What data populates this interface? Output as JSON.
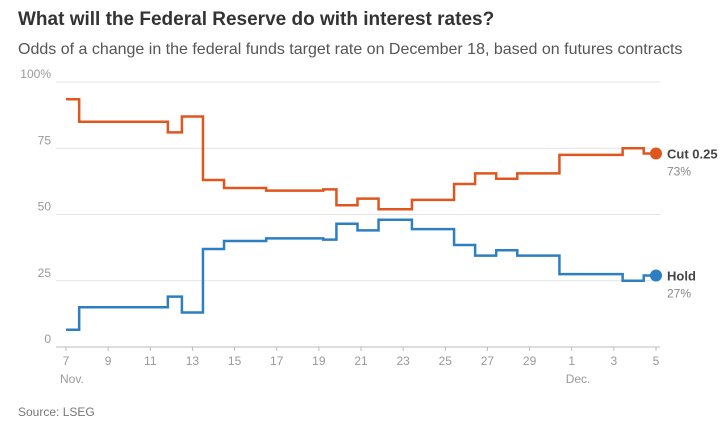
{
  "title": "What will the Federal Reserve do with interest rates?",
  "subtitle": "Odds of a change in the federal funds target rate on December 18, based on futures contracts",
  "source": "Source: LSEG",
  "chart_data": {
    "type": "line",
    "step": true,
    "xlim": [
      "2024-11-07",
      "2024-12-05"
    ],
    "ylim": [
      0,
      100
    ],
    "y_ticks": [
      {
        "value": 0,
        "label": "0"
      },
      {
        "value": 25,
        "label": "25"
      },
      {
        "value": 50,
        "label": "50"
      },
      {
        "value": 75,
        "label": "75"
      },
      {
        "value": 100,
        "label": "100%"
      }
    ],
    "x_ticks": [
      {
        "date": "2024-11-07",
        "label": "7",
        "sublabel": "Nov."
      },
      {
        "date": "2024-11-09",
        "label": "9"
      },
      {
        "date": "2024-11-11",
        "label": "11"
      },
      {
        "date": "2024-11-13",
        "label": "13"
      },
      {
        "date": "2024-11-15",
        "label": "15"
      },
      {
        "date": "2024-11-17",
        "label": "17"
      },
      {
        "date": "2024-11-19",
        "label": "19"
      },
      {
        "date": "2024-11-21",
        "label": "21"
      },
      {
        "date": "2024-11-23",
        "label": "23"
      },
      {
        "date": "2024-11-25",
        "label": "25"
      },
      {
        "date": "2024-11-27",
        "label": "27"
      },
      {
        "date": "2024-11-29",
        "label": "29"
      },
      {
        "date": "2024-12-01",
        "label": "1",
        "sublabel": "Dec."
      },
      {
        "date": "2024-12-03",
        "label": "3"
      },
      {
        "date": "2024-12-05",
        "label": "5"
      }
    ],
    "grid": true,
    "series": [
      {
        "name": "Cut 0.25",
        "color": "#e0561f",
        "end_label": "73%",
        "points": [
          [
            "2024-11-07",
            93.5
          ],
          [
            "2024-11-07T15:00",
            85
          ],
          [
            "2024-11-09",
            85
          ],
          [
            "2024-11-11",
            85
          ],
          [
            "2024-11-11T20:00",
            81
          ],
          [
            "2024-11-12T12:00",
            87
          ],
          [
            "2024-11-13T12:00",
            63
          ],
          [
            "2024-11-14T12:00",
            60
          ],
          [
            "2024-11-16T12:00",
            59
          ],
          [
            "2024-11-19T05:00",
            59.5
          ],
          [
            "2024-11-19T20:00",
            53.5
          ],
          [
            "2024-11-20T20:00",
            56
          ],
          [
            "2024-11-21T20:00",
            52
          ],
          [
            "2024-11-23T10:00",
            55.5
          ],
          [
            "2024-11-25T10:00",
            61.5
          ],
          [
            "2024-11-26T10:00",
            65.5
          ],
          [
            "2024-11-27T10:00",
            63.5
          ],
          [
            "2024-11-28T10:00",
            65.5
          ],
          [
            "2024-11-30T10:00",
            72.5
          ],
          [
            "2024-12-03T10:00",
            75
          ],
          [
            "2024-12-04T10:00",
            73
          ]
        ],
        "end": [
          "2024-12-05",
          73
        ]
      },
      {
        "name": "Hold",
        "color": "#2e7fc1",
        "end_label": "27%",
        "points": [
          [
            "2024-11-07",
            6.5
          ],
          [
            "2024-11-07T15:00",
            15
          ],
          [
            "2024-11-09",
            15
          ],
          [
            "2024-11-11",
            15
          ],
          [
            "2024-11-11T20:00",
            19
          ],
          [
            "2024-11-12T12:00",
            13
          ],
          [
            "2024-11-13T12:00",
            37
          ],
          [
            "2024-11-14T12:00",
            40
          ],
          [
            "2024-11-16T12:00",
            41
          ],
          [
            "2024-11-19T05:00",
            40.5
          ],
          [
            "2024-11-19T20:00",
            46.5
          ],
          [
            "2024-11-20T20:00",
            44
          ],
          [
            "2024-11-21T20:00",
            48
          ],
          [
            "2024-11-23T10:00",
            44.5
          ],
          [
            "2024-11-25T10:00",
            38.5
          ],
          [
            "2024-11-26T10:00",
            34.5
          ],
          [
            "2024-11-27T10:00",
            36.5
          ],
          [
            "2024-11-28T10:00",
            34.5
          ],
          [
            "2024-11-30T10:00",
            27.5
          ],
          [
            "2024-12-03T10:00",
            25
          ],
          [
            "2024-12-04T10:00",
            27
          ]
        ],
        "end": [
          "2024-12-05",
          27
        ]
      }
    ]
  }
}
